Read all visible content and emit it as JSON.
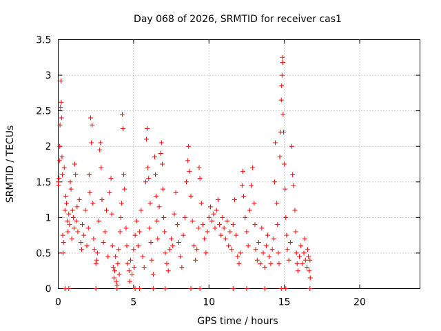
{
  "chart_data": {
    "type": "scatter",
    "title": "Day 068 of 2026, SRMTID for receiver cas1",
    "xlabel": "GPS time / hours",
    "ylabel": "SRMTID / TECUs",
    "xlim": [
      0,
      24
    ],
    "ylim": [
      0,
      3.5
    ],
    "xticks": [
      0,
      5,
      10,
      15,
      20
    ],
    "xtick_labels": [
      "0",
      "5",
      "10",
      "15",
      "20"
    ],
    "yticks": [
      0,
      0.5,
      1,
      1.5,
      2,
      2.5,
      3,
      3.5
    ],
    "ytick_labels": [
      "0",
      "0.5",
      "1",
      "1.5",
      "2",
      "2.5",
      "3",
      "3.5"
    ],
    "grid": true,
    "marker": "plus",
    "colors": {
      "series": "#ff0000",
      "grid": "#a0a0a0",
      "axis": "#000000"
    },
    "series": [
      {
        "name": "cas1",
        "points": [
          [
            0.0,
            1.5
          ],
          [
            0.02,
            1.45
          ],
          [
            0.05,
            1.55
          ],
          [
            0.08,
            1.8
          ],
          [
            0.1,
            2.0
          ],
          [
            0.12,
            2.3
          ],
          [
            0.15,
            2.55
          ],
          [
            0.18,
            2.92
          ],
          [
            0.2,
            2.62
          ],
          [
            0.22,
            2.4
          ],
          [
            0.25,
            1.85
          ],
          [
            0.28,
            1.6
          ],
          [
            0.3,
            0.75
          ],
          [
            0.32,
            0.5
          ],
          [
            0.35,
            0.65
          ],
          [
            0.4,
            1.7
          ],
          [
            0.45,
            1.1
          ],
          [
            0.5,
            1.3
          ],
          [
            0.55,
            1.2
          ],
          [
            0.6,
            0.95
          ],
          [
            0.65,
            0.8
          ],
          [
            0.7,
            1.05
          ],
          [
            0.75,
            0.9
          ],
          [
            0.8,
            1.5
          ],
          [
            0.85,
            1.4
          ],
          [
            0.9,
            0.7
          ],
          [
            0.95,
            1.1
          ],
          [
            1.0,
            1.0
          ],
          [
            1.05,
            0.85
          ],
          [
            1.1,
            1.75
          ],
          [
            1.15,
            1.6
          ],
          [
            1.2,
            0.95
          ],
          [
            1.25,
            1.15
          ],
          [
            1.3,
            0.8
          ],
          [
            1.4,
            1.25
          ],
          [
            1.5,
            0.65
          ],
          [
            1.55,
            0.55
          ],
          [
            1.6,
            0.9
          ],
          [
            1.7,
            0.75
          ],
          [
            1.8,
            1.1
          ],
          [
            1.9,
            0.6
          ],
          [
            2.0,
            0.85
          ],
          [
            2.05,
            1.6
          ],
          [
            2.1,
            1.35
          ],
          [
            2.15,
            2.4
          ],
          [
            2.2,
            2.05
          ],
          [
            2.25,
            2.3
          ],
          [
            2.3,
            1.2
          ],
          [
            2.35,
            0.7
          ],
          [
            2.4,
            0.55
          ],
          [
            2.5,
            0.35
          ],
          [
            2.55,
            0.4
          ],
          [
            2.6,
            0.5
          ],
          [
            2.7,
            0.95
          ],
          [
            2.75,
            1.95
          ],
          [
            2.8,
            2.05
          ],
          [
            2.85,
            1.7
          ],
          [
            2.9,
            1.25
          ],
          [
            3.0,
            0.65
          ],
          [
            3.1,
            0.8
          ],
          [
            3.2,
            1.1
          ],
          [
            3.3,
            0.45
          ],
          [
            3.4,
            1.35
          ],
          [
            3.5,
            1.55
          ],
          [
            3.55,
            1.05
          ],
          [
            3.6,
            0.6
          ],
          [
            3.65,
            0.3
          ],
          [
            3.7,
            0.15
          ],
          [
            3.75,
            0.25
          ],
          [
            3.8,
            0.45
          ],
          [
            3.85,
            0.1
          ],
          [
            3.9,
            0.05
          ],
          [
            3.95,
            0.35
          ],
          [
            4.0,
            0.55
          ],
          [
            4.05,
            0.2
          ],
          [
            4.1,
            0.8
          ],
          [
            4.15,
            1.0
          ],
          [
            4.2,
            1.2
          ],
          [
            4.25,
            2.45
          ],
          [
            4.3,
            2.25
          ],
          [
            4.35,
            1.6
          ],
          [
            4.4,
            1.4
          ],
          [
            4.5,
            0.85
          ],
          [
            4.55,
            0.6
          ],
          [
            4.6,
            0.35
          ],
          [
            4.7,
            0.25
          ],
          [
            4.75,
            0.1
          ],
          [
            4.8,
            0.4
          ],
          [
            4.9,
            0.2
          ],
          [
            5.0,
            0.55
          ],
          [
            5.05,
            0.3
          ],
          [
            5.1,
            0.75
          ],
          [
            5.2,
            0.95
          ],
          [
            5.3,
            0.6
          ],
          [
            5.4,
            0.8
          ],
          [
            5.5,
            1.1
          ],
          [
            5.6,
            0.45
          ],
          [
            5.7,
            0.3
          ],
          [
            5.8,
            1.5
          ],
          [
            5.85,
            2.1
          ],
          [
            5.9,
            2.25
          ],
          [
            5.95,
            1.7
          ],
          [
            6.0,
            1.55
          ],
          [
            6.05,
            0.85
          ],
          [
            6.1,
            1.2
          ],
          [
            6.15,
            0.65
          ],
          [
            6.2,
            0.4
          ],
          [
            6.3,
            0.2
          ],
          [
            6.4,
            1.85
          ],
          [
            6.45,
            1.6
          ],
          [
            6.5,
            1.3
          ],
          [
            6.55,
            0.95
          ],
          [
            6.6,
            0.7
          ],
          [
            6.7,
            1.15
          ],
          [
            6.8,
            1.9
          ],
          [
            6.85,
            2.05
          ],
          [
            6.9,
            1.75
          ],
          [
            6.95,
            1.4
          ],
          [
            7.0,
            1.0
          ],
          [
            7.05,
            0.8
          ],
          [
            7.1,
            0.5
          ],
          [
            7.2,
            0.35
          ],
          [
            7.3,
            0.25
          ],
          [
            7.4,
            0.55
          ],
          [
            7.5,
            0.7
          ],
          [
            7.6,
            0.6
          ],
          [
            7.7,
            1.05
          ],
          [
            7.8,
            1.35
          ],
          [
            7.9,
            0.9
          ],
          [
            8.0,
            0.65
          ],
          [
            8.1,
            0.45
          ],
          [
            8.2,
            0.3
          ],
          [
            8.3,
            0.75
          ],
          [
            8.4,
            1.0
          ],
          [
            8.5,
            1.5
          ],
          [
            8.6,
            1.8
          ],
          [
            8.65,
            2.0
          ],
          [
            8.7,
            1.65
          ],
          [
            8.8,
            1.3
          ],
          [
            8.9,
            0.95
          ],
          [
            9.0,
            0.6
          ],
          [
            9.1,
            0.4
          ],
          [
            9.2,
            0.55
          ],
          [
            9.3,
            0.85
          ],
          [
            9.35,
            1.7
          ],
          [
            9.4,
            1.55
          ],
          [
            9.5,
            1.2
          ],
          [
            9.6,
            0.9
          ],
          [
            9.7,
            0.7
          ],
          [
            9.8,
            0.5
          ],
          [
            9.9,
            0.8
          ],
          [
            10.0,
            1.0
          ],
          [
            10.1,
            1.15
          ],
          [
            10.2,
            0.95
          ],
          [
            10.3,
            1.05
          ],
          [
            10.4,
            0.85
          ],
          [
            10.5,
            1.1
          ],
          [
            10.6,
            1.25
          ],
          [
            10.7,
            0.9
          ],
          [
            10.8,
            0.75
          ],
          [
            10.9,
            1.0
          ],
          [
            11.0,
            0.85
          ],
          [
            11.1,
            0.7
          ],
          [
            11.2,
            0.95
          ],
          [
            11.3,
            0.6
          ],
          [
            11.4,
            0.8
          ],
          [
            11.5,
            0.55
          ],
          [
            11.6,
            0.9
          ],
          [
            11.7,
            1.25
          ],
          [
            11.8,
            0.75
          ],
          [
            11.9,
            0.45
          ],
          [
            12.0,
            0.35
          ],
          [
            12.1,
            0.5
          ],
          [
            12.2,
            1.45
          ],
          [
            12.25,
            1.65
          ],
          [
            12.3,
            1.3
          ],
          [
            12.4,
            1.0
          ],
          [
            12.5,
            0.8
          ],
          [
            12.6,
            0.6
          ],
          [
            12.7,
            1.1
          ],
          [
            12.8,
            1.45
          ],
          [
            12.9,
            1.7
          ],
          [
            13.0,
            1.2
          ],
          [
            13.05,
            0.9
          ],
          [
            13.1,
            0.55
          ],
          [
            13.2,
            0.4
          ],
          [
            13.3,
            0.65
          ],
          [
            13.4,
            0.35
          ],
          [
            13.5,
            0.85
          ],
          [
            13.6,
            0.5
          ],
          [
            13.7,
            0.3
          ],
          [
            13.8,
            0.6
          ],
          [
            13.9,
            0.75
          ],
          [
            14.0,
            0.45
          ],
          [
            14.1,
            0.35
          ],
          [
            14.2,
            0.55
          ],
          [
            14.3,
            0.7
          ],
          [
            14.35,
            1.5
          ],
          [
            14.4,
            2.05
          ],
          [
            14.5,
            1.2
          ],
          [
            14.55,
            0.9
          ],
          [
            14.6,
            0.5
          ],
          [
            14.65,
            0.35
          ],
          [
            14.7,
            1.85
          ],
          [
            14.75,
            2.2
          ],
          [
            14.8,
            2.65
          ],
          [
            14.82,
            2.85
          ],
          [
            14.85,
            3.0
          ],
          [
            14.88,
            3.25
          ],
          [
            14.9,
            3.18
          ],
          [
            14.92,
            2.45
          ],
          [
            14.95,
            2.2
          ],
          [
            15.0,
            1.75
          ],
          [
            15.05,
            1.4
          ],
          [
            15.1,
            1.0
          ],
          [
            15.15,
            0.75
          ],
          [
            15.2,
            0.55
          ],
          [
            15.3,
            0.4
          ],
          [
            15.4,
            0.65
          ],
          [
            15.5,
            2.0
          ],
          [
            15.55,
            1.6
          ],
          [
            15.6,
            1.45
          ],
          [
            15.7,
            1.1
          ],
          [
            15.75,
            0.8
          ],
          [
            15.8,
            0.5
          ],
          [
            15.85,
            0.35
          ],
          [
            15.9,
            0.25
          ],
          [
            16.0,
            0.45
          ],
          [
            16.1,
            0.6
          ],
          [
            16.2,
            0.35
          ],
          [
            16.3,
            0.5
          ],
          [
            16.35,
            0.7
          ],
          [
            16.4,
            0.4
          ],
          [
            16.5,
            0.3
          ],
          [
            16.55,
            0.55
          ],
          [
            16.6,
            0.45
          ],
          [
            16.65,
            0.25
          ],
          [
            16.7,
            0.4
          ],
          [
            16.72,
            0.15
          ],
          [
            0.45,
            0.0
          ],
          [
            0.7,
            0.0
          ],
          [
            2.5,
            0.0
          ],
          [
            3.9,
            0.0
          ],
          [
            5.1,
            0.0
          ],
          [
            5.4,
            0.0
          ],
          [
            6.3,
            0.0
          ],
          [
            7.1,
            0.0
          ],
          [
            8.8,
            0.0
          ],
          [
            9.4,
            0.0
          ],
          [
            11.6,
            0.0
          ],
          [
            12.5,
            0.0
          ],
          [
            13.7,
            0.0
          ],
          [
            14.8,
            0.0
          ],
          [
            15.1,
            0.0
          ],
          [
            16.7,
            0.0
          ]
        ]
      }
    ]
  }
}
